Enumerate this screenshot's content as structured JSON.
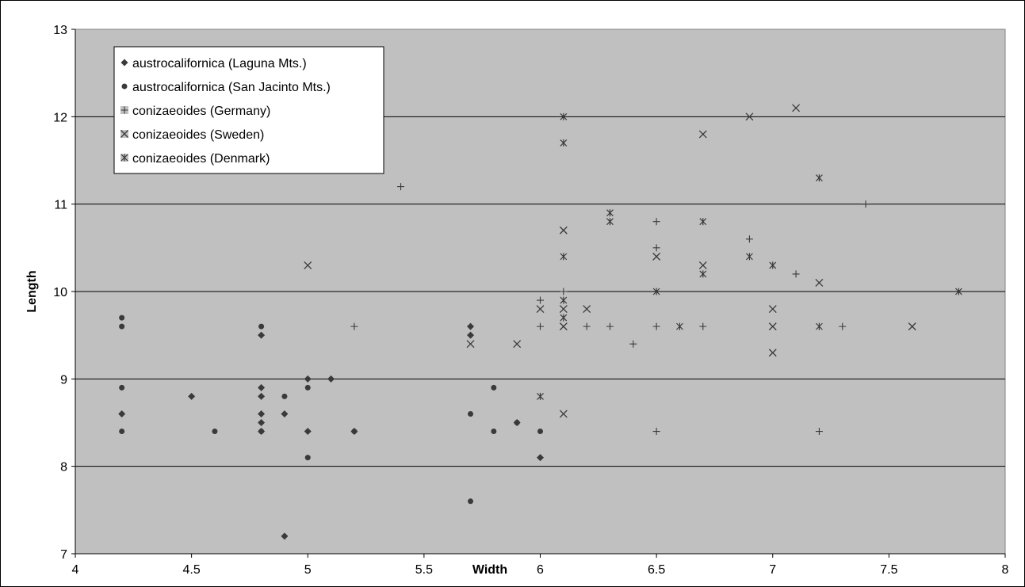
{
  "chart_data": {
    "type": "scatter",
    "title": "",
    "xlabel": "Width",
    "ylabel": "Length",
    "xlim": [
      4,
      8
    ],
    "ylim": [
      7,
      13
    ],
    "xticks": [
      "4",
      "4.5",
      "5",
      "5.5",
      "6",
      "6.5",
      "7",
      "7.5",
      "8"
    ],
    "yticks": [
      "7",
      "8",
      "9",
      "10",
      "11",
      "12",
      "13"
    ],
    "grid": "horizontal",
    "legend_position": "top-left",
    "plot_background": "#c0c0c0",
    "marker_color": "#3a3a3a",
    "series": [
      {
        "name": "austrocalifornica (Laguna Mts.)",
        "marker": "diamond",
        "points": [
          [
            4.2,
            8.6
          ],
          [
            4.5,
            8.8
          ],
          [
            4.8,
            9.5
          ],
          [
            4.8,
            8.9
          ],
          [
            4.8,
            8.8
          ],
          [
            4.8,
            8.6
          ],
          [
            4.8,
            8.5
          ],
          [
            4.8,
            8.4
          ],
          [
            4.9,
            8.6
          ],
          [
            4.9,
            7.2
          ],
          [
            5.0,
            9.0
          ],
          [
            5.0,
            8.4
          ],
          [
            5.1,
            9.0
          ],
          [
            5.2,
            8.4
          ],
          [
            5.7,
            9.6
          ],
          [
            5.7,
            9.5
          ],
          [
            5.9,
            8.5
          ],
          [
            6.0,
            8.1
          ]
        ]
      },
      {
        "name": "austrocalifornica (San Jacinto Mts.)",
        "marker": "circle",
        "points": [
          [
            4.2,
            9.7
          ],
          [
            4.2,
            9.6
          ],
          [
            4.2,
            8.9
          ],
          [
            4.2,
            8.4
          ],
          [
            4.6,
            8.4
          ],
          [
            4.8,
            9.6
          ],
          [
            4.8,
            8.4
          ],
          [
            4.9,
            8.8
          ],
          [
            5.0,
            8.9
          ],
          [
            5.0,
            8.1
          ],
          [
            5.2,
            8.4
          ],
          [
            5.7,
            8.6
          ],
          [
            5.7,
            7.6
          ],
          [
            5.8,
            8.9
          ],
          [
            5.8,
            8.4
          ],
          [
            5.9,
            8.5
          ],
          [
            6.0,
            8.4
          ]
        ]
      },
      {
        "name": "conizaeoides (Germany)",
        "marker": "plus",
        "points": [
          [
            5.2,
            9.6
          ],
          [
            5.4,
            11.2
          ],
          [
            6.0,
            9.9
          ],
          [
            6.0,
            9.6
          ],
          [
            6.1,
            10.0
          ],
          [
            6.2,
            9.6
          ],
          [
            6.3,
            9.6
          ],
          [
            6.4,
            9.4
          ],
          [
            6.5,
            10.8
          ],
          [
            6.5,
            10.5
          ],
          [
            6.5,
            9.6
          ],
          [
            6.5,
            8.4
          ],
          [
            6.7,
            9.6
          ],
          [
            6.9,
            10.6
          ],
          [
            7.1,
            10.2
          ],
          [
            7.2,
            8.4
          ],
          [
            7.3,
            9.6
          ],
          [
            7.4,
            11.0
          ]
        ]
      },
      {
        "name": "conizaeoides (Sweden)",
        "marker": "x",
        "points": [
          [
            5.0,
            10.3
          ],
          [
            5.7,
            9.4
          ],
          [
            5.9,
            9.4
          ],
          [
            6.0,
            9.8
          ],
          [
            6.1,
            10.7
          ],
          [
            6.1,
            9.8
          ],
          [
            6.1,
            9.6
          ],
          [
            6.1,
            8.6
          ],
          [
            6.2,
            9.8
          ],
          [
            6.5,
            10.4
          ],
          [
            6.7,
            11.8
          ],
          [
            6.7,
            10.3
          ],
          [
            6.9,
            12.0
          ],
          [
            7.0,
            9.8
          ],
          [
            7.0,
            9.6
          ],
          [
            7.0,
            9.3
          ],
          [
            7.1,
            12.1
          ],
          [
            7.2,
            10.1
          ],
          [
            7.6,
            9.6
          ]
        ]
      },
      {
        "name": "conizaeoides (Denmark)",
        "marker": "asterisk",
        "points": [
          [
            6.0,
            8.8
          ],
          [
            6.1,
            12.0
          ],
          [
            6.1,
            11.7
          ],
          [
            6.1,
            10.4
          ],
          [
            6.1,
            9.9
          ],
          [
            6.1,
            9.7
          ],
          [
            6.3,
            10.9
          ],
          [
            6.3,
            10.8
          ],
          [
            6.5,
            10.0
          ],
          [
            6.6,
            9.6
          ],
          [
            6.7,
            10.8
          ],
          [
            6.7,
            10.2
          ],
          [
            6.9,
            10.4
          ],
          [
            7.0,
            10.3
          ],
          [
            7.2,
            11.3
          ],
          [
            7.2,
            9.6
          ],
          [
            7.8,
            10.0
          ]
        ]
      }
    ]
  }
}
